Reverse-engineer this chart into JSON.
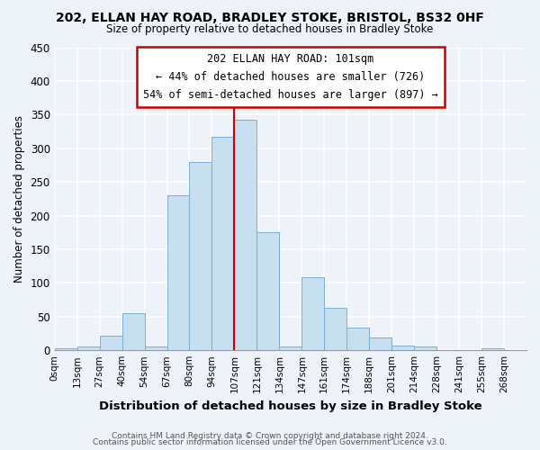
{
  "title1": "202, ELLAN HAY ROAD, BRADLEY STOKE, BRISTOL, BS32 0HF",
  "title2": "Size of property relative to detached houses in Bradley Stoke",
  "xlabel": "Distribution of detached houses by size in Bradley Stoke",
  "ylabel": "Number of detached properties",
  "bin_labels": [
    "0sqm",
    "13sqm",
    "27sqm",
    "40sqm",
    "54sqm",
    "67sqm",
    "80sqm",
    "94sqm",
    "107sqm",
    "121sqm",
    "134sqm",
    "147sqm",
    "161sqm",
    "174sqm",
    "188sqm",
    "201sqm",
    "214sqm",
    "228sqm",
    "241sqm",
    "255sqm",
    "268sqm"
  ],
  "bar_heights": [
    3,
    6,
    22,
    55,
    5,
    230,
    280,
    317,
    342,
    176,
    5,
    108,
    63,
    33,
    19,
    7,
    5,
    0,
    0,
    3,
    0
  ],
  "bar_color": "#c8dff0",
  "bar_edge_color": "#7bafd4",
  "vline_x_index": 8,
  "vline_color": "#cc0000",
  "annotation_line1": "202 ELLAN HAY ROAD: 101sqm",
  "annotation_line2": "← 44% of detached houses are smaller (726)",
  "annotation_line3": "54% of semi-detached houses are larger (897) →",
  "ylim": [
    0,
    450
  ],
  "yticks": [
    0,
    50,
    100,
    150,
    200,
    250,
    300,
    350,
    400,
    450
  ],
  "footer1": "Contains HM Land Registry data © Crown copyright and database right 2024.",
  "footer2": "Contains public sector information licensed under the Open Government Licence v3.0.",
  "bg_color": "#eef2f9"
}
